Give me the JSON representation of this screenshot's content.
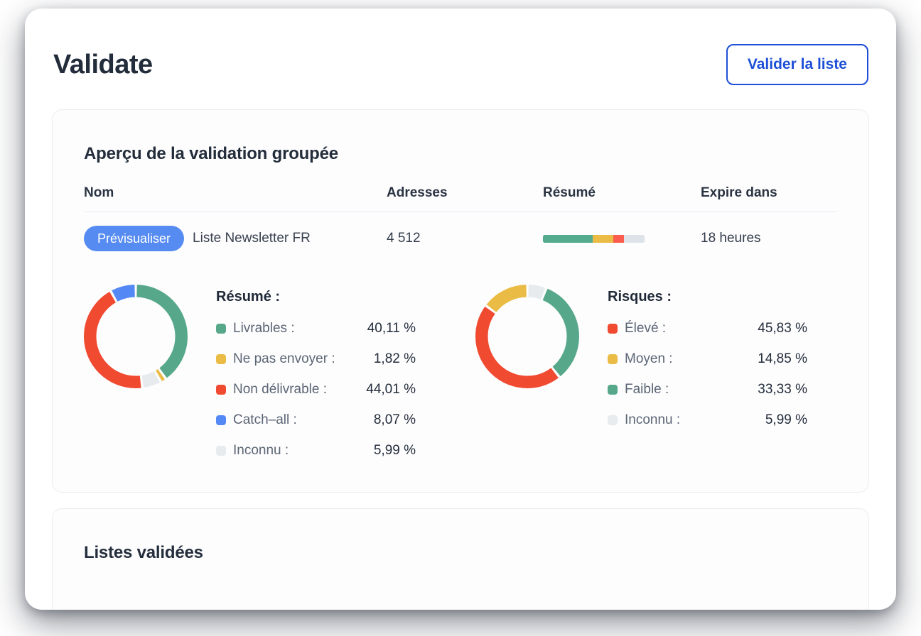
{
  "page": {
    "title": "Validate",
    "validate_button": "Valider la liste",
    "accent_blue": "#1d4fd7"
  },
  "overview": {
    "heading": "Aperçu de la validation groupée",
    "columns": [
      "Nom",
      "Adresses",
      "Résumé",
      "Expire dans"
    ],
    "row": {
      "preview_button": "Prévisualiser",
      "preview_button_color": "#568bf2",
      "name": "Liste Newsletter FR",
      "addresses": "4 512",
      "expires": "18 heures",
      "summary_bar": [
        {
          "name": "livrables",
          "color": "#55ab8d",
          "percent": 49
        },
        {
          "name": "ne-pas-envoyer",
          "color": "#eabc45",
          "percent": 20
        },
        {
          "name": "non-delivrable",
          "color": "#fa5c4d",
          "percent": 11
        },
        {
          "name": "inconnu",
          "color": "#dde3e8",
          "percent": 20
        }
      ]
    }
  },
  "chart_data": [
    {
      "type": "donut",
      "title": "Résumé :",
      "legend_position": "right",
      "segments": [
        {
          "label": "Livrables :",
          "value": 40.11,
          "display": "40,11 %",
          "color": "#57a88a"
        },
        {
          "label": "Ne pas envoyer :",
          "value": 1.82,
          "display": "1,82 %",
          "color": "#eabc45"
        },
        {
          "label": "Non délivrable :",
          "value": 44.01,
          "display": "44,01 %",
          "color": "#f04a31"
        },
        {
          "label": "Catch–all :",
          "value": 8.07,
          "display": "8,07 %",
          "color": "#5489f5"
        },
        {
          "label": "Inconnu :",
          "value": 5.99,
          "display": "5,99 %",
          "color": "#e7ebee"
        }
      ],
      "draw_order": [
        0,
        1,
        4,
        2,
        3
      ]
    },
    {
      "type": "donut",
      "title": "Risques :",
      "legend_position": "right",
      "segments": [
        {
          "label": "Élevé :",
          "value": 45.83,
          "display": "45,83 %",
          "color": "#f04a31"
        },
        {
          "label": "Moyen :",
          "value": 14.85,
          "display": "14,85 %",
          "color": "#eabc45"
        },
        {
          "label": "Faible :",
          "value": 33.33,
          "display": "33,33 %",
          "color": "#57a88a"
        },
        {
          "label": "Inconnu :",
          "value": 5.99,
          "display": "5,99 %",
          "color": "#e7ebee"
        }
      ],
      "draw_order": [
        3,
        2,
        0,
        1
      ]
    }
  ],
  "validated": {
    "heading": "Listes validées"
  }
}
